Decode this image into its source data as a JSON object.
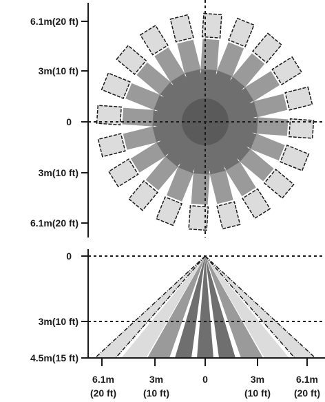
{
  "top_view": {
    "y_labels": {
      "upper_far": "6.1m(20 ft)",
      "upper_near": "3m(10 ft)",
      "origin": "0",
      "lower_near": "3m(10 ft)",
      "lower_far": "6.1m(20 ft)"
    }
  },
  "side_view": {
    "y_labels": {
      "top": "0",
      "mid": "3m(10 ft)",
      "bottom": "4.5m(15 ft)"
    },
    "x_labels": [
      {
        "metric": "6.1m",
        "imperial": "(20 ft)"
      },
      {
        "metric": "3m",
        "imperial": "(10 ft)"
      },
      {
        "metric": "0",
        "imperial": ""
      },
      {
        "metric": "3m",
        "imperial": "(10 ft)"
      },
      {
        "metric": "6.1m",
        "imperial": "(20 ft)"
      }
    ]
  },
  "colors": {
    "dark": "#6f6f6f",
    "mid": "#9a9a9a",
    "light": "#dcdcdc",
    "line": "#1a1a1a"
  }
}
